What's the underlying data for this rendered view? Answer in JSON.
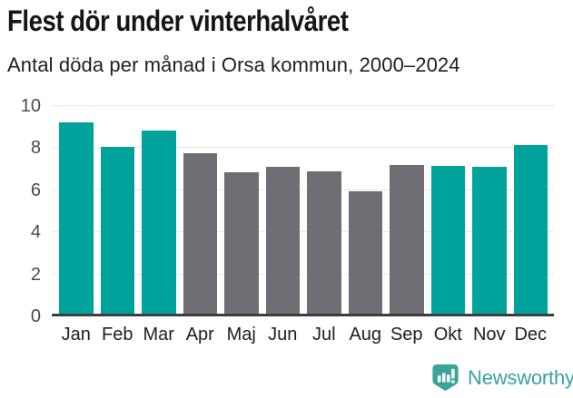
{
  "chart_data": {
    "type": "bar",
    "title": "Flest dör under vinterhalvåret",
    "subtitle": "Antal döda per månad i Orsa kommun, 2000–2024",
    "categories": [
      "Jan",
      "Feb",
      "Mar",
      "Apr",
      "Maj",
      "Jun",
      "Jul",
      "Aug",
      "Sep",
      "Okt",
      "Nov",
      "Dec"
    ],
    "values": [
      9.2,
      8.0,
      8.8,
      7.7,
      6.8,
      7.05,
      6.85,
      5.9,
      7.15,
      7.1,
      7.05,
      8.1
    ],
    "highlighted": [
      true,
      true,
      true,
      false,
      false,
      false,
      false,
      false,
      false,
      true,
      true,
      true
    ],
    "ylim": [
      0,
      10
    ],
    "yticks": [
      0,
      2,
      4,
      6,
      8,
      10
    ],
    "grid": "horizontal-gridlines-on",
    "legend": "none",
    "colors": {
      "highlight": "#00a39b",
      "base": "#6e6e74",
      "axis": "#3d3d3d",
      "gridline": "#e8e8e8"
    }
  },
  "footer": {
    "brand": "Newsworthy",
    "brand_color": "#3aa39c",
    "logo_icon": "newsworthy-badge-barchart-icon"
  }
}
